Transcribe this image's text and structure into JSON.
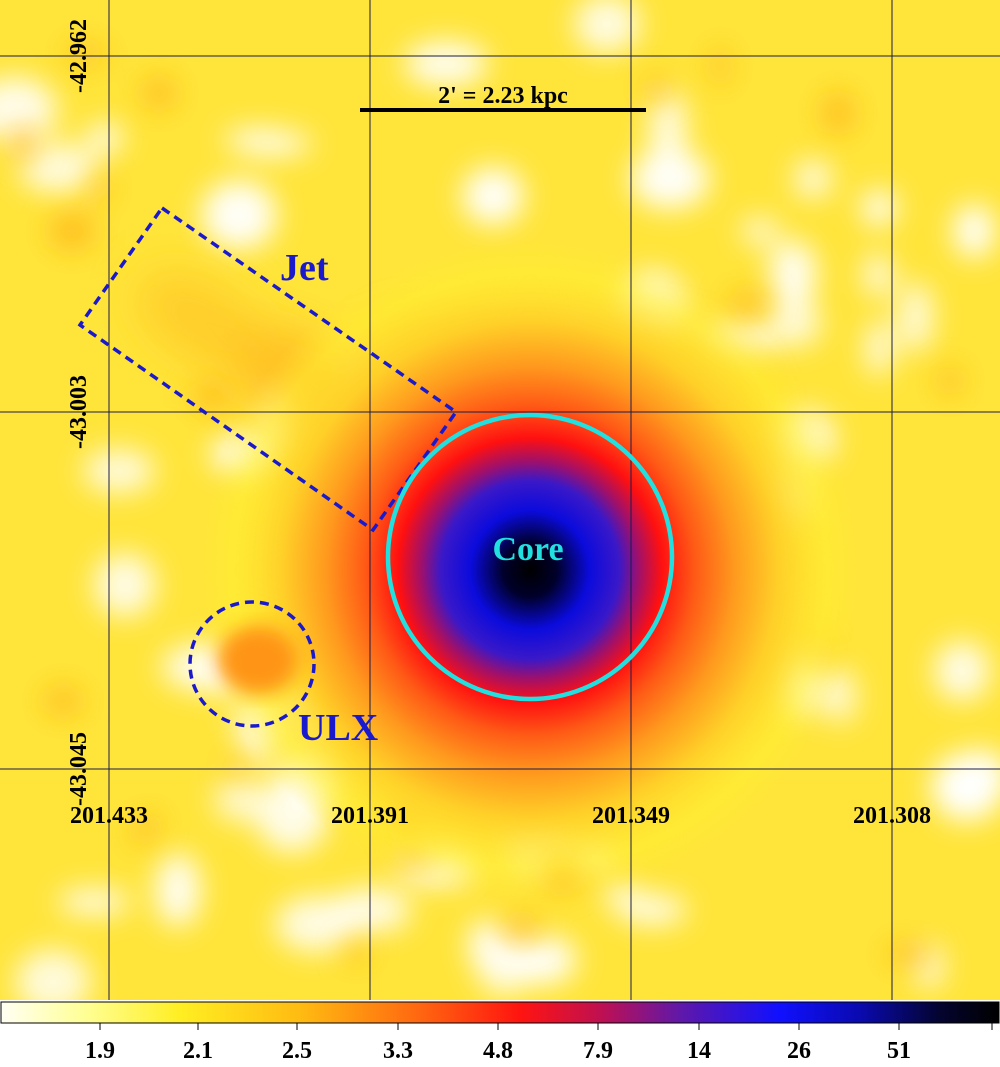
{
  "image": {
    "scale_bar_label": "2' = 2.23 kpc",
    "dec_ticks": [
      "-42.962",
      "-43.003",
      "-43.045"
    ],
    "ra_ticks": [
      "201.433",
      "201.391",
      "201.349",
      "201.308"
    ],
    "regions": {
      "jet_label": "Jet",
      "core_label": "Core",
      "ulx_label": "ULX"
    },
    "colorbar": {
      "ticks": [
        "1.9",
        "2.1",
        "2.5",
        "3.3",
        "4.8",
        "7.9",
        "14",
        "26",
        "51"
      ]
    },
    "colors": {
      "region_dashed": "#1a1acc",
      "core_circle": "#22e0e0",
      "core_label": "#22e0e0",
      "grid": "#1a1a4a",
      "scale_bar": "#000000"
    }
  }
}
